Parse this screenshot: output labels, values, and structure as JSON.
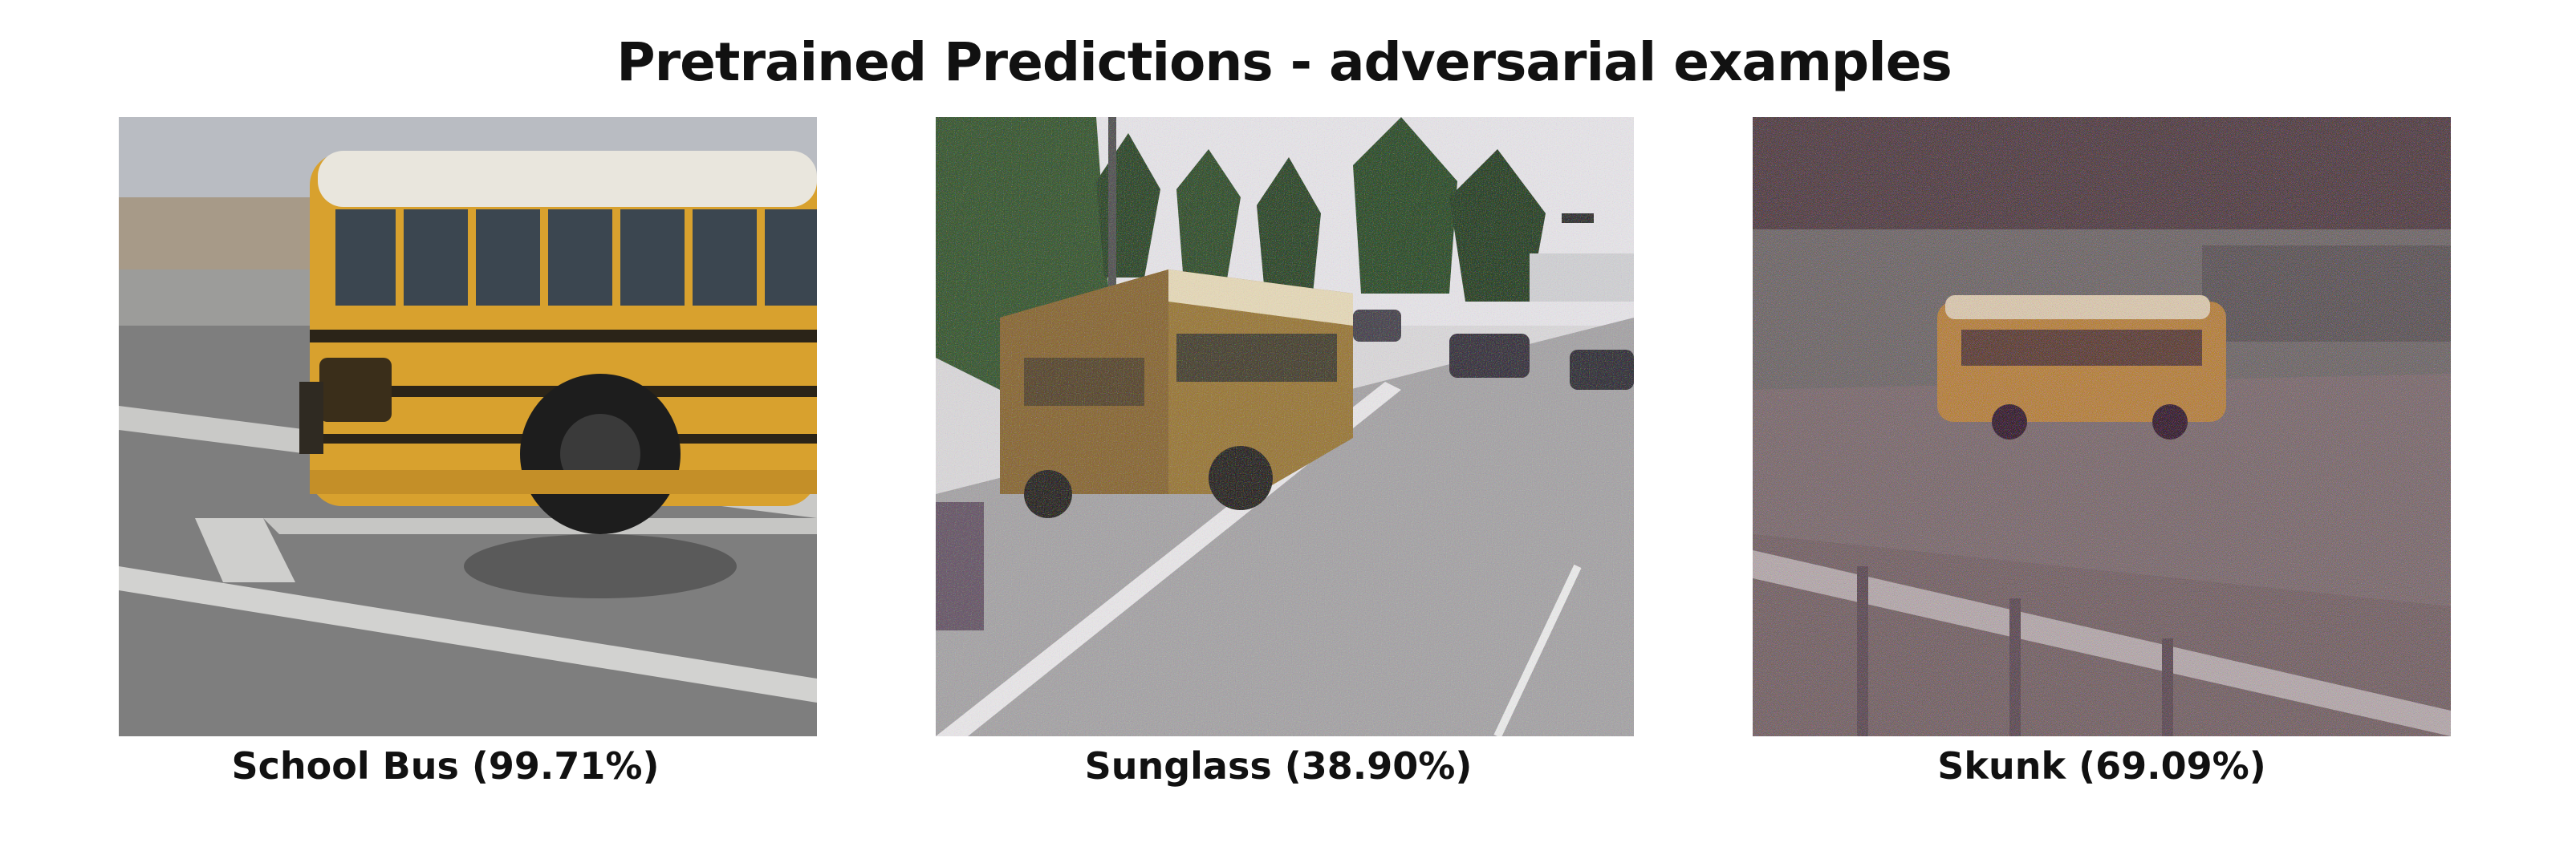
{
  "title": "Pretrained Predictions - adversarial examples",
  "panels": [
    {
      "caption": "School Bus (99.71%)"
    },
    {
      "caption": "Sunglass (38.90%)"
    },
    {
      "caption": "Skunk (69.09%)"
    }
  ],
  "colors": {
    "bus_yellow": "#d8a12e",
    "road_gray": "#8a8a8a",
    "tree_green": "#2f4a2a"
  }
}
